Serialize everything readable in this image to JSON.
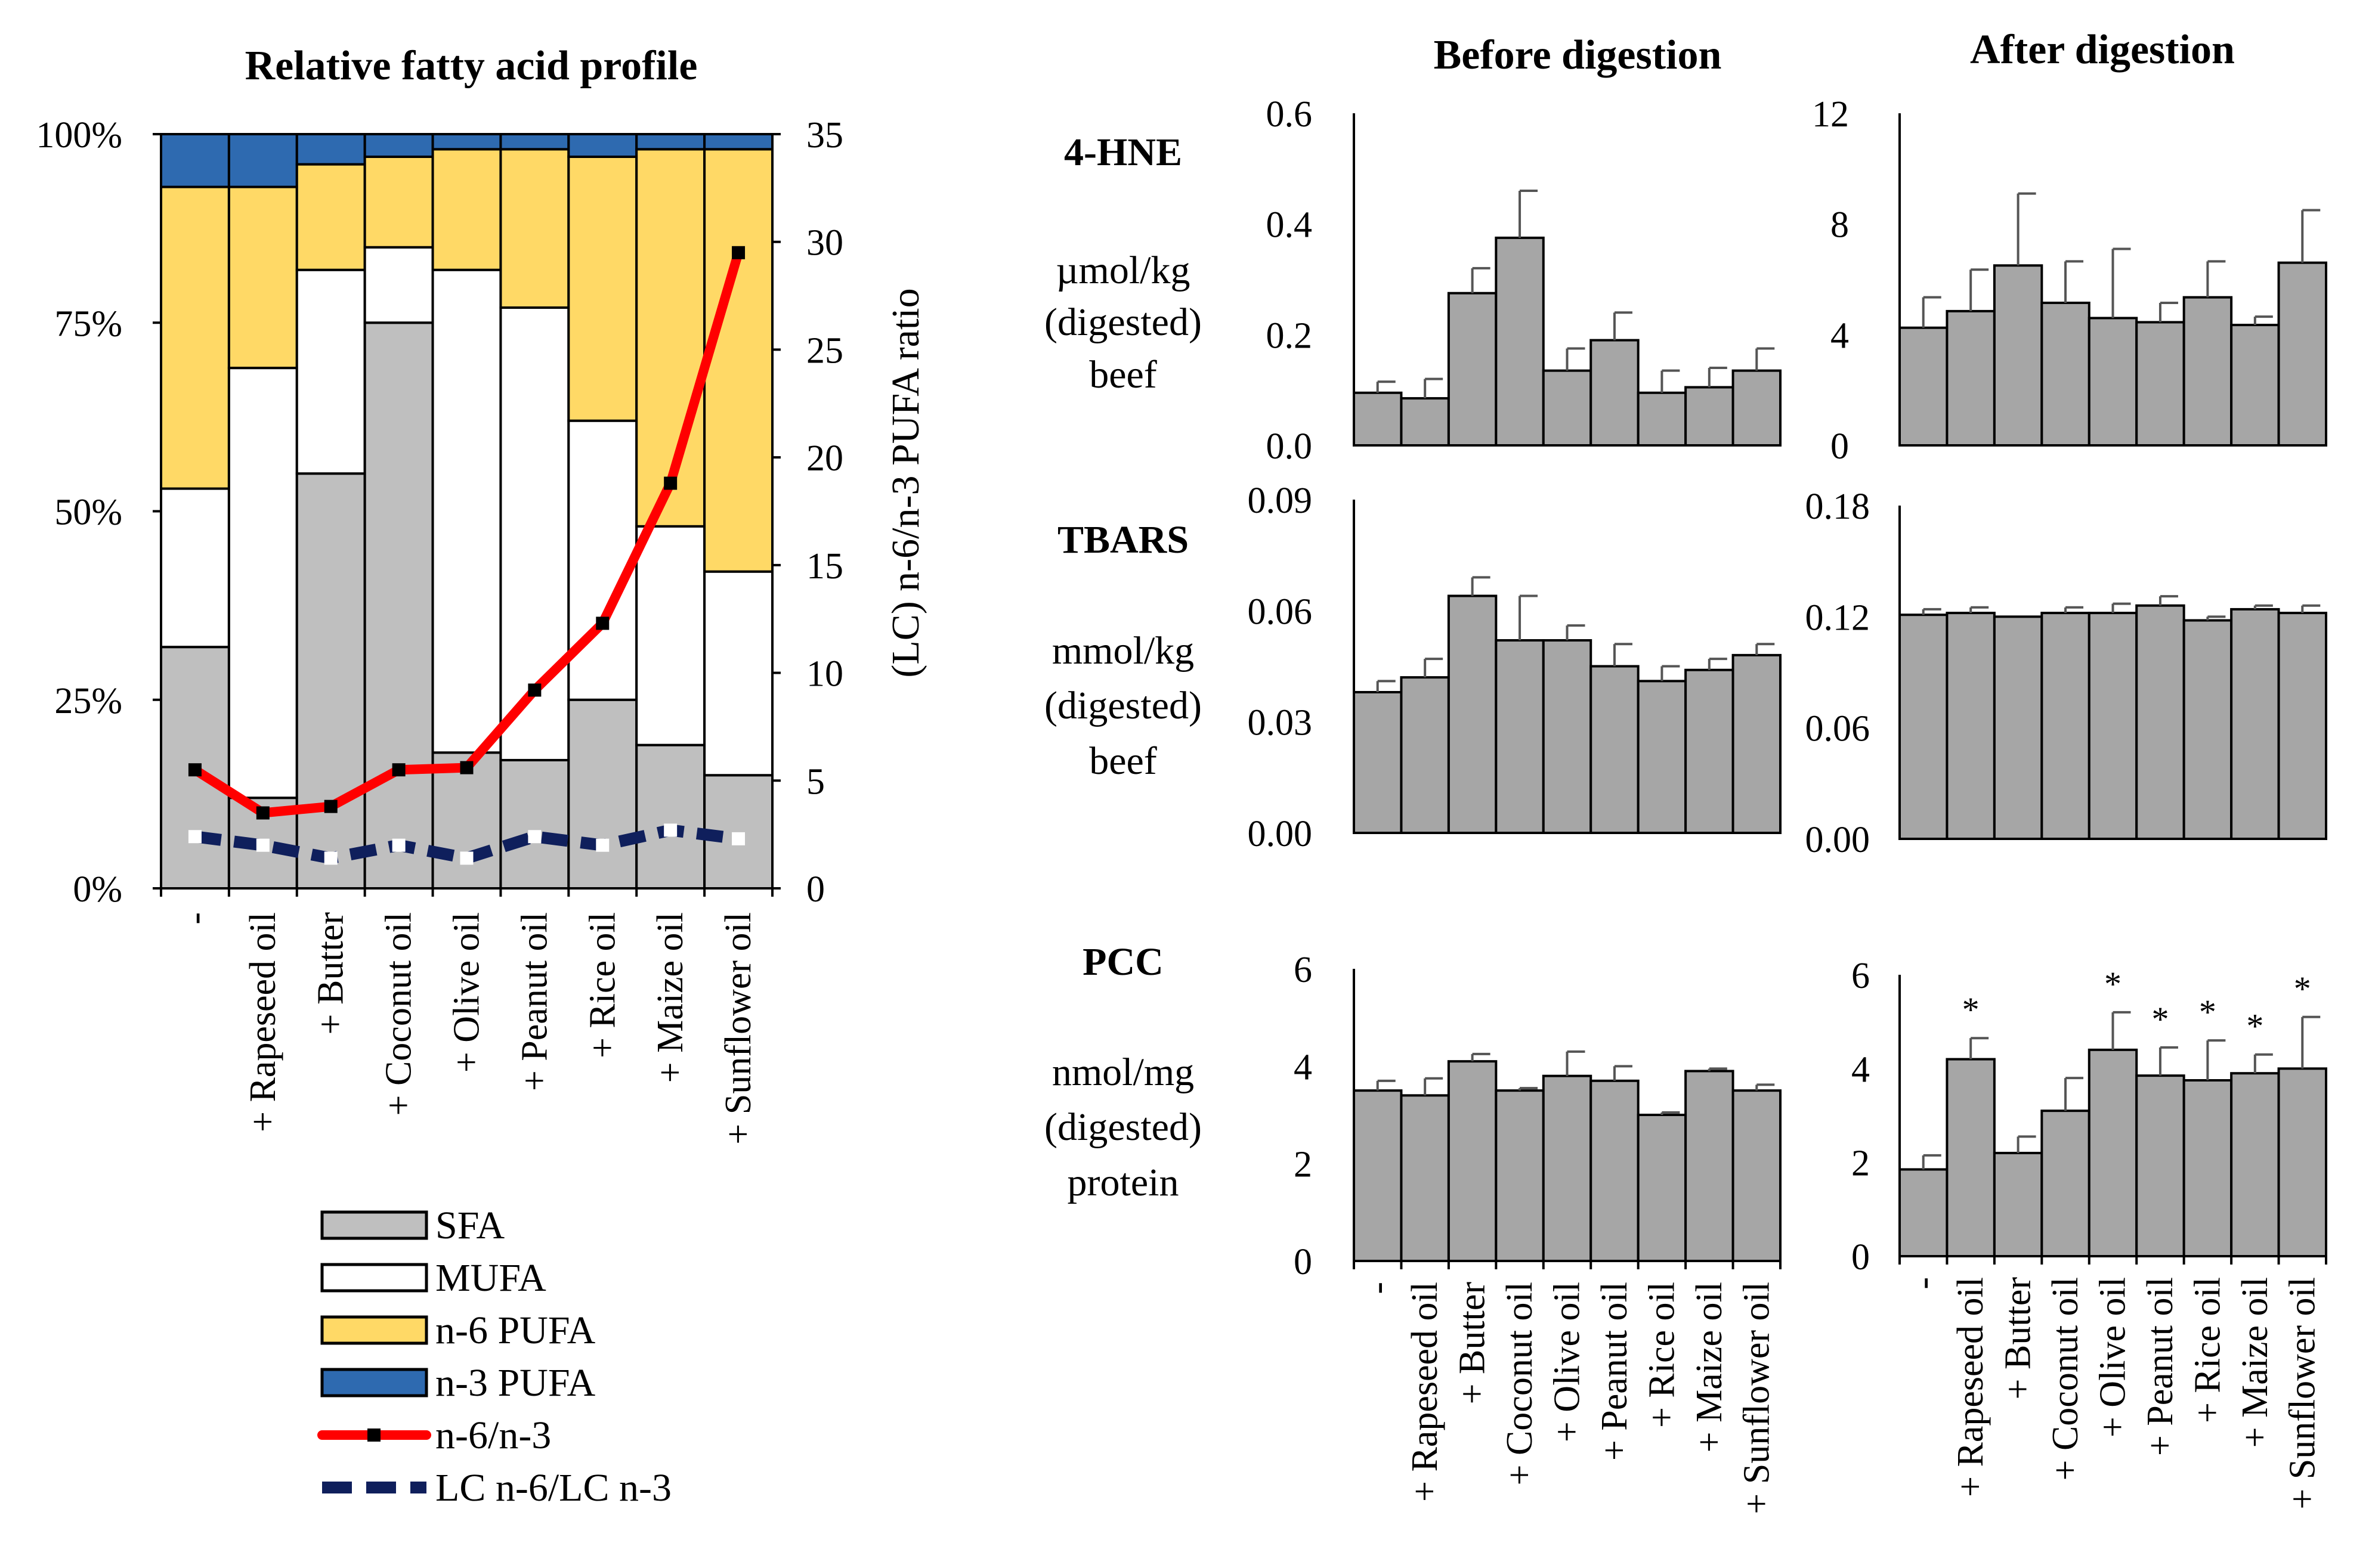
{
  "categories": [
    "-",
    "+ Rapeseed oil",
    "+ Butter",
    "+ Coconut oil",
    "+ Olive oil",
    "+ Peanut oil",
    "+ Rice oil",
    "+ Maize oil",
    "+ Sunflower oil"
  ],
  "colors": {
    "bar_gray": "#bfbfbf",
    "small_bar_gray": "#a6a6a6",
    "mufa": "#ffffff",
    "n6": "#ffd966",
    "n3": "#2e6ab0",
    "ratio_line": "#ff0000",
    "lc_line": "#0f1f5c",
    "axis": "#000000"
  },
  "chart_data": [
    {
      "id": "fatty",
      "type": "bar",
      "subtype": "stacked_percent_with_lines",
      "title": "Relative fatty acid profile",
      "ylabel_right": "(LC) n-6/n-3 PUFA ratio",
      "ylim": [
        0,
        100
      ],
      "yticks": [
        "0%",
        "25%",
        "50%",
        "75%",
        "100%"
      ],
      "ylim_right": [
        0,
        35
      ],
      "yticks_right": [
        "0",
        "5",
        "10",
        "15",
        "20",
        "25",
        "30",
        "35"
      ],
      "series": [
        {
          "name": "SFA",
          "color": "#bfbfbf",
          "values": [
            32,
            12,
            55,
            75,
            18,
            17,
            25,
            19,
            15
          ]
        },
        {
          "name": "MUFA",
          "color": "#ffffff",
          "values": [
            21,
            57,
            27,
            10,
            64,
            60,
            37,
            29,
            27
          ]
        },
        {
          "name": "n-6 PUFA",
          "color": "#ffd966",
          "values": [
            40,
            24,
            14,
            12,
            16,
            21,
            35,
            50,
            56
          ]
        },
        {
          "name": "n-3 PUFA",
          "color": "#2e6ab0",
          "values": [
            7,
            7,
            4,
            3,
            2,
            2,
            3,
            2,
            2
          ]
        }
      ],
      "lines": [
        {
          "name": "n-6/n-3",
          "values": [
            5.5,
            3.5,
            3.8,
            5.5,
            5.6,
            9.2,
            12.3,
            18.8,
            29.5
          ]
        },
        {
          "name": "LC n-6/LC n-3",
          "values": [
            2.4,
            2.0,
            1.4,
            2.0,
            1.4,
            2.4,
            2.0,
            2.7,
            2.3
          ]
        }
      ],
      "legend": [
        "SFA",
        "MUFA",
        "n-6 PUFA",
        "n-3 PUFA",
        "n-6/n-3",
        "LC n-6/LC n-3"
      ]
    },
    {
      "id": "hne_before",
      "type": "bar",
      "column_title": "Before digestion",
      "row_label": "4-HNE",
      "unit": [
        "µmol/kg",
        "(digested)",
        "beef"
      ],
      "ylim": [
        0,
        0.6
      ],
      "yticks": [
        "0.0",
        "0.2",
        "0.4",
        "0.6"
      ],
      "values": [
        0.095,
        0.085,
        0.275,
        0.375,
        0.135,
        0.19,
        0.095,
        0.105,
        0.135
      ],
      "errors": [
        0.02,
        0.035,
        0.045,
        0.085,
        0.04,
        0.05,
        0.04,
        0.035,
        0.04
      ]
    },
    {
      "id": "hne_after",
      "type": "bar",
      "column_title": "After digestion",
      "ylim": [
        0,
        12
      ],
      "yticks": [
        "0",
        "4",
        "8",
        "12"
      ],
      "values": [
        4.25,
        4.85,
        6.5,
        5.15,
        4.6,
        4.45,
        5.35,
        4.35,
        6.6
      ],
      "errors": [
        1.1,
        1.5,
        2.6,
        1.5,
        2.5,
        0.7,
        1.3,
        0.3,
        1.9
      ]
    },
    {
      "id": "tbars_before",
      "type": "bar",
      "row_label": "TBARS",
      "unit": [
        "mmol/kg",
        "(digested)",
        "beef"
      ],
      "ylim": [
        0,
        0.09
      ],
      "yticks": [
        "0.00",
        "0.03",
        "0.06",
        "0.09"
      ],
      "values": [
        0.038,
        0.042,
        0.064,
        0.052,
        0.052,
        0.045,
        0.041,
        0.044,
        0.048
      ],
      "errors": [
        0.003,
        0.005,
        0.005,
        0.012,
        0.004,
        0.006,
        0.004,
        0.003,
        0.003
      ]
    },
    {
      "id": "tbars_after",
      "type": "bar",
      "ylim": [
        0,
        0.18
      ],
      "yticks": [
        "0.00",
        "0.06",
        "0.12",
        "0.18"
      ],
      "values": [
        0.121,
        0.122,
        0.12,
        0.122,
        0.122,
        0.126,
        0.118,
        0.124,
        0.122
      ],
      "errors": [
        0.003,
        0.003,
        0.0,
        0.003,
        0.005,
        0.005,
        0.002,
        0.002,
        0.004
      ]
    },
    {
      "id": "pcc_before",
      "type": "bar",
      "row_label": "PCC",
      "unit": [
        "nmol/mg",
        "(digested)",
        "protein"
      ],
      "ylim": [
        0,
        6
      ],
      "yticks": [
        "0",
        "2",
        "4",
        "6"
      ],
      "values": [
        3.5,
        3.4,
        4.1,
        3.5,
        3.8,
        3.7,
        3.0,
        3.9,
        3.5
      ],
      "errors": [
        0.2,
        0.35,
        0.15,
        0.05,
        0.5,
        0.3,
        0.05,
        0.05,
        0.12
      ]
    },
    {
      "id": "pcc_after",
      "type": "bar",
      "ylim": [
        0,
        6
      ],
      "yticks": [
        "0",
        "2",
        "4",
        "6"
      ],
      "values": [
        1.85,
        4.2,
        2.2,
        3.1,
        4.4,
        3.85,
        3.75,
        3.9,
        4.0
      ],
      "errors": [
        0.3,
        0.45,
        0.35,
        0.7,
        0.8,
        0.6,
        0.85,
        0.4,
        1.1
      ],
      "significance": [
        "",
        "*",
        "",
        "",
        "*",
        "*",
        "*",
        "*",
        "*"
      ]
    }
  ]
}
